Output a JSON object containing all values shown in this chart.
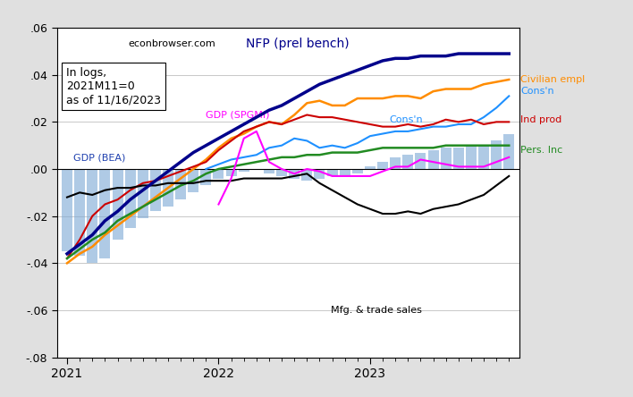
{
  "watermark": "econbrowser.com",
  "note_lines": [
    "In logs,",
    "2021M11=0",
    "as of 11/16/2023"
  ],
  "ylim": [
    -0.08,
    0.06
  ],
  "yticks": [
    -0.08,
    -0.06,
    -0.04,
    -0.02,
    0.0,
    0.02,
    0.04,
    0.06
  ],
  "xtick_positions": [
    0,
    12,
    24
  ],
  "xtick_labels": [
    "2021",
    "2022",
    "2023"
  ],
  "background_color": "#e0e0e0",
  "plot_bg_color": "#ffffff",
  "nfp": [
    -0.036,
    -0.032,
    -0.028,
    -0.022,
    -0.018,
    -0.013,
    -0.009,
    -0.005,
    -0.001,
    0.003,
    0.007,
    0.01,
    0.013,
    0.016,
    0.019,
    0.022,
    0.025,
    0.027,
    0.03,
    0.033,
    0.036,
    0.038,
    0.04,
    0.042,
    0.044,
    0.046,
    0.047,
    0.047,
    0.048,
    0.048,
    0.048,
    0.049,
    0.049,
    0.049,
    0.049,
    0.049
  ],
  "civilian": [
    -0.04,
    -0.036,
    -0.033,
    -0.028,
    -0.024,
    -0.02,
    -0.016,
    -0.012,
    -0.008,
    -0.004,
    0.0,
    0.004,
    0.009,
    0.013,
    0.015,
    0.018,
    0.02,
    0.019,
    0.023,
    0.028,
    0.029,
    0.027,
    0.027,
    0.03,
    0.03,
    0.03,
    0.031,
    0.031,
    0.03,
    0.033,
    0.034,
    0.034,
    0.034,
    0.036,
    0.037,
    0.038
  ],
  "consn": [
    null,
    null,
    null,
    null,
    null,
    null,
    null,
    null,
    null,
    null,
    null,
    0.0,
    0.002,
    0.004,
    0.005,
    0.006,
    0.009,
    0.01,
    0.013,
    0.012,
    0.009,
    0.01,
    0.009,
    0.011,
    0.014,
    0.015,
    0.016,
    0.016,
    0.017,
    0.018,
    0.018,
    0.019,
    0.019,
    0.022,
    0.026,
    0.031
  ],
  "ind_prod": [
    -0.038,
    -0.03,
    -0.02,
    -0.015,
    -0.013,
    -0.009,
    -0.006,
    -0.005,
    -0.003,
    -0.001,
    0.001,
    0.003,
    0.008,
    0.012,
    0.016,
    0.018,
    0.02,
    0.019,
    0.021,
    0.023,
    0.022,
    0.022,
    0.021,
    0.02,
    0.019,
    0.018,
    0.018,
    0.019,
    0.018,
    0.019,
    0.021,
    0.02,
    0.021,
    0.019,
    0.02,
    0.02
  ],
  "pers_inc": [
    -0.038,
    -0.034,
    -0.03,
    -0.027,
    -0.022,
    -0.019,
    -0.016,
    -0.013,
    -0.01,
    -0.007,
    -0.005,
    -0.002,
    0.0,
    0.001,
    0.002,
    0.003,
    0.004,
    0.005,
    0.005,
    0.006,
    0.006,
    0.007,
    0.007,
    0.007,
    0.008,
    0.009,
    0.009,
    0.009,
    0.009,
    0.009,
    0.01,
    0.01,
    0.01,
    0.01,
    0.01,
    0.01
  ],
  "mfg_trade": [
    -0.012,
    -0.01,
    -0.011,
    -0.009,
    -0.008,
    -0.008,
    -0.007,
    -0.007,
    -0.006,
    -0.006,
    -0.006,
    -0.005,
    -0.005,
    -0.005,
    -0.004,
    -0.004,
    -0.004,
    -0.004,
    -0.003,
    -0.002,
    -0.006,
    -0.009,
    -0.012,
    -0.015,
    -0.017,
    -0.019,
    -0.019,
    -0.018,
    -0.019,
    -0.017,
    -0.016,
    -0.015,
    -0.013,
    -0.011,
    -0.007,
    -0.003
  ],
  "gdp_spgmi": [
    null,
    null,
    null,
    null,
    null,
    null,
    null,
    null,
    null,
    null,
    null,
    null,
    -0.015,
    -0.004,
    0.013,
    0.016,
    0.003,
    0.0,
    -0.002,
    0.0,
    -0.001,
    -0.003,
    -0.003,
    -0.003,
    -0.003,
    -0.001,
    0.001,
    0.001,
    0.004,
    0.003,
    0.002,
    0.001,
    0.001,
    0.001,
    0.003,
    0.005
  ],
  "gdp_bea_bars": [
    -0.035,
    -0.037,
    -0.04,
    -0.038,
    -0.03,
    -0.025,
    -0.021,
    -0.018,
    -0.016,
    -0.013,
    -0.01,
    -0.007,
    -0.004,
    -0.003,
    -0.001,
    0.0,
    -0.002,
    -0.003,
    -0.004,
    -0.005,
    -0.004,
    -0.003,
    -0.003,
    -0.002,
    0.001,
    0.003,
    0.005,
    0.006,
    0.007,
    0.008,
    0.009,
    0.009,
    0.01,
    0.01,
    0.012,
    0.015
  ],
  "colors": {
    "nfp": "#00008B",
    "civilian": "#FF8C00",
    "consn": "#1E90FF",
    "ind_prod": "#CC0000",
    "pers_inc": "#228B22",
    "mfg_trade": "#000000",
    "gdp_spgmi": "#FF00FF",
    "gdp_bea_bar": "#7BA7D4"
  },
  "label_nfp": "NFP (prel bench)",
  "label_civilian": "Civilian empl",
  "label_consn": "Cons'n",
  "label_ind_prod": "Ind prod",
  "label_pers_inc": "Pers. Inc",
  "label_mfg_trade": "Mfg. & trade sales",
  "label_gdp_spgmi": "GDP (SPGMI)",
  "label_gdp_bea": "GDP (BEA)"
}
